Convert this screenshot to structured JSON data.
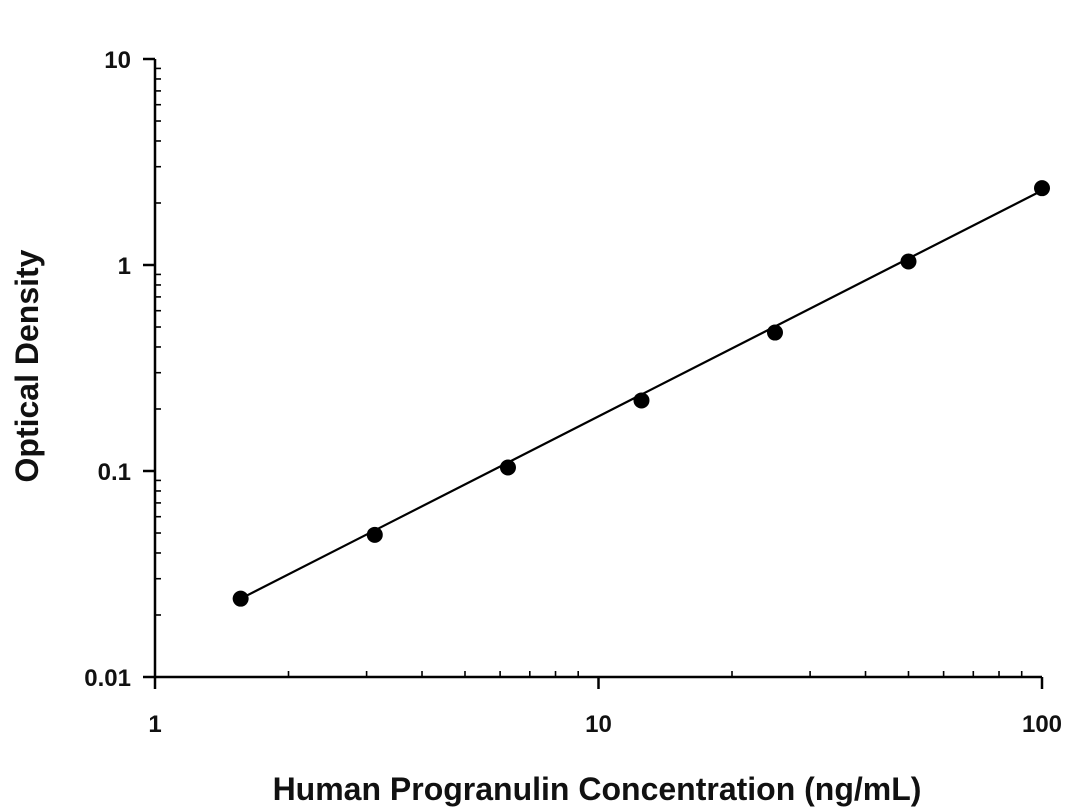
{
  "chart_data": {
    "type": "scatter",
    "title": "",
    "xlabel": "Human Progranulin Concentration (ng/mL)",
    "ylabel": "Optical Density",
    "x_scale": "log",
    "y_scale": "log",
    "xlim": [
      1,
      100
    ],
    "ylim": [
      0.01,
      10
    ],
    "x_ticks": [
      {
        "value": 1,
        "label": "1"
      },
      {
        "value": 10,
        "label": "10"
      },
      {
        "value": 100,
        "label": "100"
      }
    ],
    "y_ticks": [
      {
        "value": 0.01,
        "label": "0.01"
      },
      {
        "value": 0.1,
        "label": "0.1"
      },
      {
        "value": 1,
        "label": "1"
      },
      {
        "value": 10,
        "label": "10"
      }
    ],
    "grid": false,
    "legend": "none",
    "series": [
      {
        "x": [
          1.56,
          3.13,
          6.25,
          12.5,
          25,
          50,
          100
        ],
        "y": [
          0.024,
          0.049,
          0.104,
          0.22,
          0.47,
          1.04,
          2.36
        ]
      }
    ],
    "fit_line": {
      "type": "log-log linear",
      "x": [
        1.56,
        100
      ],
      "y": [
        0.024,
        2.3
      ]
    },
    "colors": {
      "points": "#000000",
      "line": "#000000",
      "axes": "#000000"
    }
  }
}
